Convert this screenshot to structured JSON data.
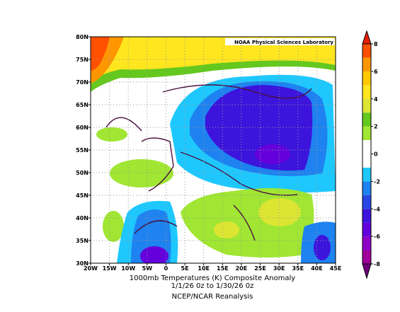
{
  "map": {
    "watermark": "NOAA Physical Sciences Laboratory",
    "xlim": [
      -20,
      45
    ],
    "ylim": [
      30,
      80
    ],
    "xticks": [
      {
        "value": -20,
        "label": "20W"
      },
      {
        "value": -15,
        "label": "15W"
      },
      {
        "value": -10,
        "label": "10W"
      },
      {
        "value": -5,
        "label": "5W"
      },
      0,
      {
        "value": 5,
        "label": "5E"
      },
      {
        "value": 10,
        "label": "10E"
      },
      {
        "value": 15,
        "label": "15E"
      },
      {
        "value": 20,
        "label": "20E"
      },
      {
        "value": 25,
        "label": "25E"
      },
      {
        "value": 30,
        "label": "30E"
      },
      {
        "value": 35,
        "label": "35E"
      },
      {
        "value": 40,
        "label": "40E"
      },
      {
        "value": 45,
        "label": "45E"
      }
    ],
    "yticks": [
      {
        "value": 30,
        "label": "30N"
      },
      {
        "value": 35,
        "label": "35N"
      },
      {
        "value": 40,
        "label": "40N"
      },
      {
        "value": 45,
        "label": "45N"
      },
      {
        "value": 50,
        "label": "50N"
      },
      {
        "value": 55,
        "label": "55N"
      },
      {
        "value": 60,
        "label": "60N"
      },
      {
        "value": 65,
        "label": "65N"
      },
      {
        "value": 70,
        "label": "70N"
      },
      {
        "value": 75,
        "label": "75N"
      },
      {
        "value": 80,
        "label": "80N"
      }
    ],
    "grid": true
  },
  "colorbar": {
    "lim": [
      -8,
      8
    ],
    "ticks": [
      -8,
      -6,
      -4,
      -2,
      0,
      2,
      4,
      6,
      8
    ],
    "bounds": [
      -8,
      -7,
      -6,
      -5,
      -4,
      -3,
      -2,
      -1,
      0,
      1,
      2,
      3,
      4,
      5,
      6,
      7,
      8
    ],
    "colors": [
      "#a0009b",
      "#8c00c8",
      "#6400dc",
      "#3c14dc",
      "#2846e6",
      "#1e82f0",
      "#1ec8ff",
      "#ffffff",
      "#ffffff",
      "#a0e632",
      "#64c81e",
      "#dce632",
      "#ffe61e",
      "#ffc800",
      "#ff9600",
      "#ff5000"
    ],
    "under_color": "#6e0078",
    "over_color": "#e61e00"
  },
  "caption": {
    "line1": "1000mb Temperatures (K)   Composite Anomaly",
    "line2": "1/1/26 0z  to 1/30/26 0z",
    "line3": "NCEP/NCAR Reanalysis"
  }
}
